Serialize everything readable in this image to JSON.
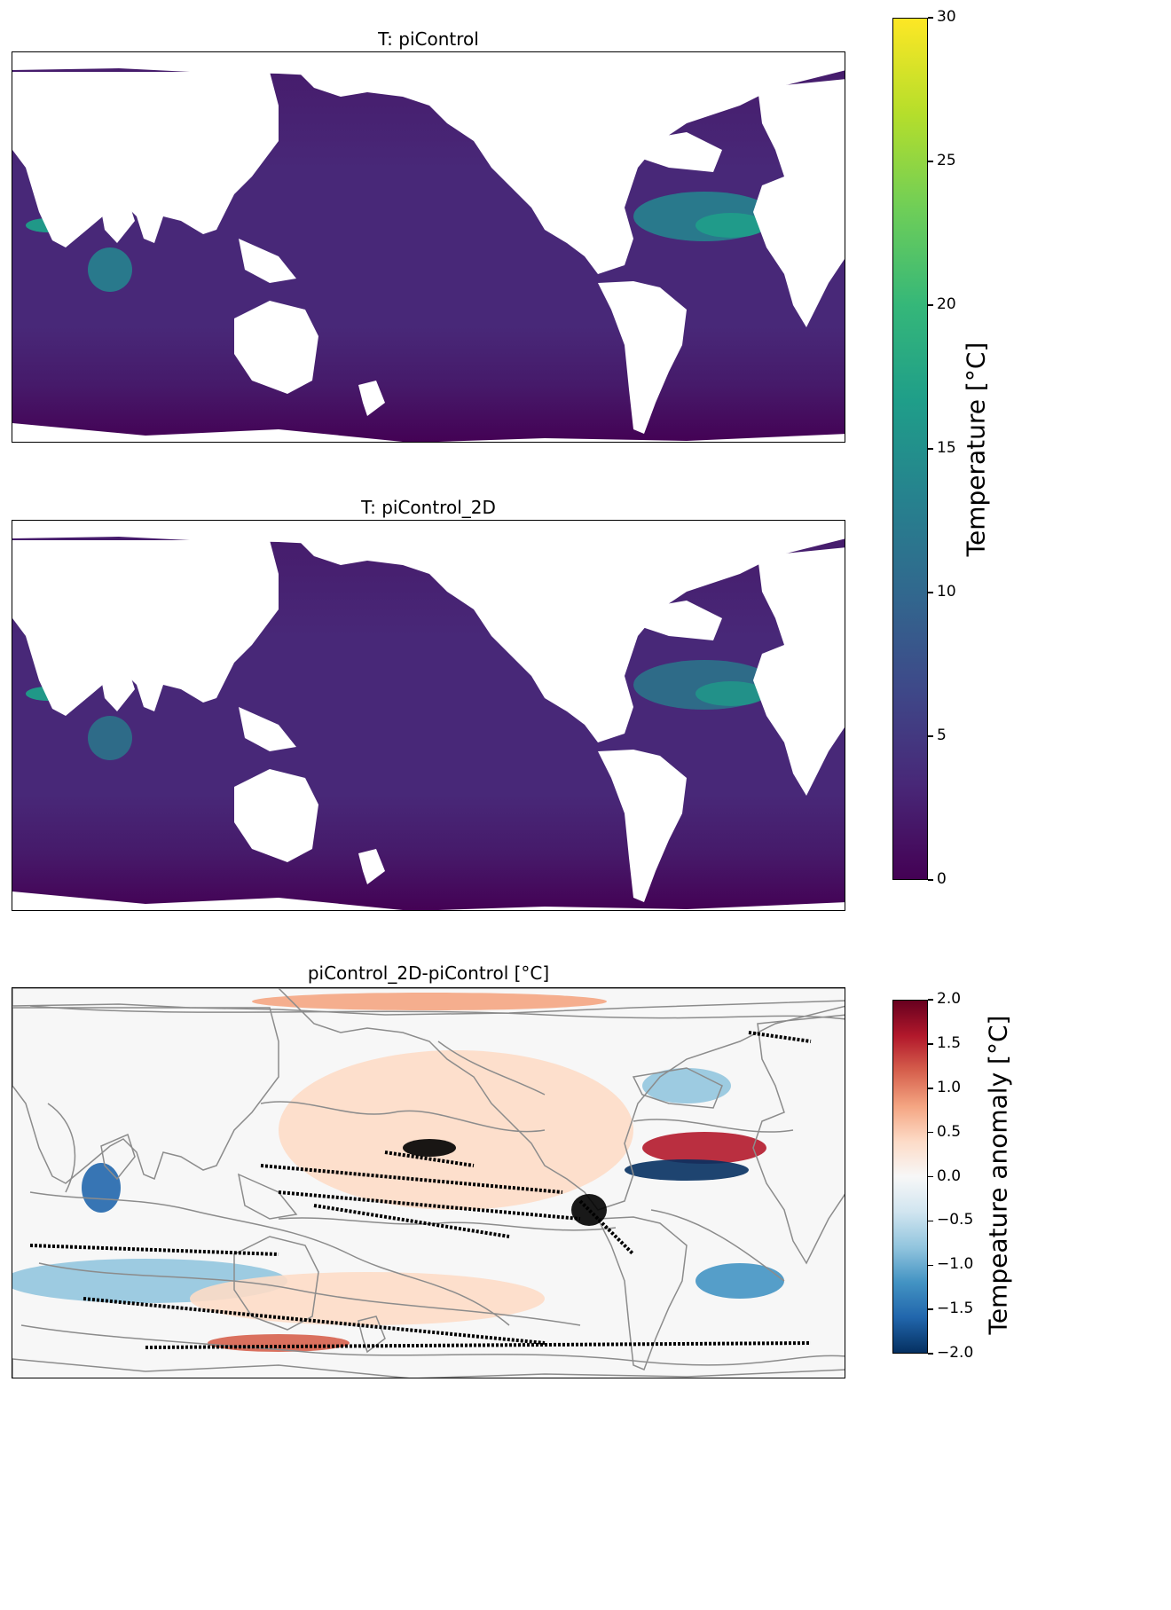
{
  "chart_data": [
    {
      "type": "heatmap",
      "title": "T: piControl",
      "variable": "Temperature",
      "colormap": "viridis",
      "colorbar_label": "Temperature [°C]",
      "clim": [
        0,
        30
      ],
      "colorbar_ticks": [
        "0",
        "5",
        "10",
        "15",
        "20",
        "25",
        "30"
      ]
    },
    {
      "type": "heatmap",
      "title": "T: piControl_2D",
      "variable": "Temperature",
      "colormap": "viridis",
      "colorbar_label": "Temperature [°C]",
      "clim": [
        0,
        30
      ],
      "colorbar_ticks": [
        "0",
        "5",
        "10",
        "15",
        "20",
        "25",
        "30"
      ]
    },
    {
      "type": "heatmap",
      "title": "piControl_2D-piControl [°C]",
      "variable": "Tempeature anomaly",
      "colormap": "RdBu_r",
      "colorbar_label": "Tempeature anomaly [°C]",
      "clim": [
        -2,
        2
      ],
      "colorbar_ticks": [
        "−2.0",
        "−1.5",
        "−1.0",
        "−0.5",
        "0.0",
        "0.5",
        "1.0",
        "1.5",
        "2.0"
      ]
    }
  ],
  "colors": {
    "viridis": [
      "#440154",
      "#482878",
      "#3e4989",
      "#31688e",
      "#26828e",
      "#1f9e89",
      "#35b779",
      "#6ece58",
      "#b5de2b",
      "#fde725"
    ],
    "rdbu": [
      "#053061",
      "#2166ac",
      "#4393c3",
      "#92c5de",
      "#d1e5f0",
      "#f7f7f7",
      "#fddbc7",
      "#f4a582",
      "#d6604d",
      "#b2182b",
      "#67001f"
    ],
    "land": "#ffffff",
    "ocean_cold": "#3b1c6e",
    "ocean_deep": "#461a6a",
    "contour": "#8c8c8c",
    "stipple": "#000000"
  }
}
